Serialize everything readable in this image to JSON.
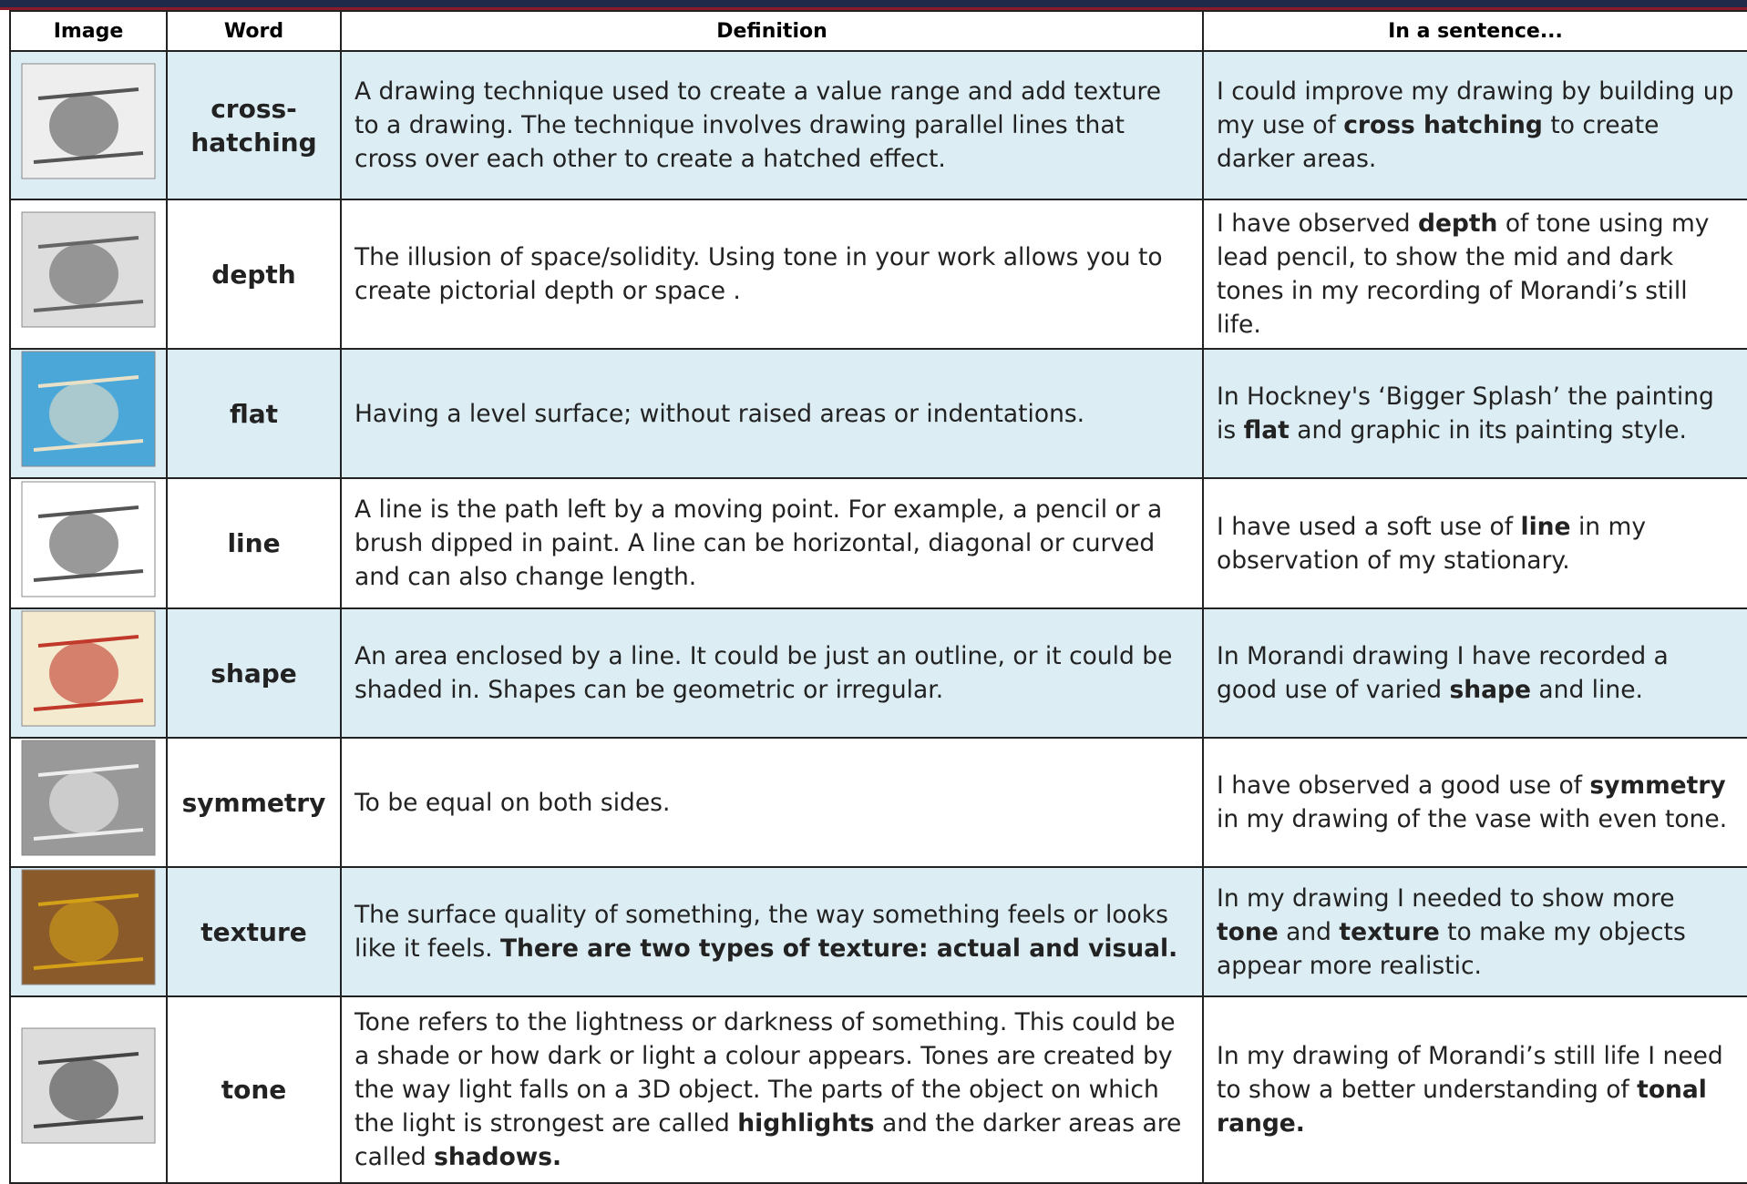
{
  "table": {
    "header": [
      "Image",
      "Word",
      "Definition",
      "In a sentence..."
    ],
    "rows": [
      {
        "word": "cross-hatching",
        "definition": [
          {
            "text": "A drawing technique used to create a value range and add texture to a drawing. The technique involves drawing parallel lines that cross over each other to create a hatched effect.",
            "bold": false
          }
        ],
        "sentence": [
          {
            "text": "I could improve my drawing by building up my use of ",
            "bold": false
          },
          {
            "text": "cross hatching",
            "bold": true
          },
          {
            "text": " to create darker areas.",
            "bold": false
          }
        ]
      },
      {
        "word": "depth",
        "definition": [
          {
            "text": "The illusion of space/solidity.  Using tone in your work allows you to create pictorial depth or space .",
            "bold": false
          }
        ],
        "sentence": [
          {
            "text": "I have observed ",
            "bold": false
          },
          {
            "text": "depth",
            "bold": true
          },
          {
            "text": " of tone using my lead pencil, to show the mid and dark tones in my recording of Morandi’s still life.",
            "bold": false
          }
        ]
      },
      {
        "word": "flat",
        "definition": [
          {
            "text": "Having a level surface; without raised areas or indentations.",
            "bold": false
          }
        ],
        "sentence": [
          {
            "text": "In Hockney's ‘Bigger Splash’ the painting is ",
            "bold": false
          },
          {
            "text": "flat",
            "bold": true
          },
          {
            "text": " and graphic in its painting style.",
            "bold": false
          }
        ]
      },
      {
        "word": "line",
        "definition": [
          {
            "text": "A line is the path left by a moving point. For example, a pencil or a brush dipped in paint. A line can be horizontal, diagonal or curved and can also change length.",
            "bold": false
          }
        ],
        "sentence": [
          {
            "text": "I have used a soft use of ",
            "bold": false
          },
          {
            "text": "line",
            "bold": true
          },
          {
            "text": " in my observation of my stationary.",
            "bold": false
          }
        ]
      },
      {
        "word": "shape",
        "definition": [
          {
            "text": "An area enclosed by a line. It could be just an outline, or it could be shaded in. Shapes can be geometric or irregular.",
            "bold": false
          }
        ],
        "sentence": [
          {
            "text": "In Morandi drawing I have recorded a good use of varied ",
            "bold": false
          },
          {
            "text": "shape",
            "bold": true
          },
          {
            "text": " and line.",
            "bold": false
          }
        ]
      },
      {
        "word": "symmetry",
        "definition": [
          {
            "text": "To be equal on both sides.",
            "bold": false
          }
        ],
        "sentence": [
          {
            "text": "I have observed a good use of ",
            "bold": false
          },
          {
            "text": "symmetry",
            "bold": true
          },
          {
            "text": " in my drawing of the vase with even tone.",
            "bold": false
          }
        ]
      },
      {
        "word": "texture",
        "definition": [
          {
            "text": "The surface quality of something, the way something feels or looks like it feels. ",
            "bold": false
          },
          {
            "text": "There are two types of texture: actual and visual.",
            "bold": true
          }
        ],
        "sentence": [
          {
            "text": "In my drawing I needed to show more ",
            "bold": false
          },
          {
            "text": "tone",
            "bold": true
          },
          {
            "text": " and ",
            "bold": false
          },
          {
            "text": "texture",
            "bold": true
          },
          {
            "text": " to make my objects appear more realistic.",
            "bold": false
          }
        ]
      },
      {
        "word": "tone",
        "definition": [
          {
            "text": "Tone refers to the lightness or darkness of something. This could be a shade or how dark or light a colour appears. Tones are created by the way light falls on a 3D object. The parts of the object on which the light is strongest are called ",
            "bold": false
          },
          {
            "text": "highlights",
            "bold": true
          },
          {
            "text": " and the darker areas are called ",
            "bold": false
          },
          {
            "text": "shadows.",
            "bold": true
          }
        ],
        "sentence": [
          {
            "text": "In my drawing of Morandi’s still life I need to show a better understanding of ",
            "bold": false
          },
          {
            "text": "tonal range.",
            "bold": true
          }
        ]
      }
    ]
  }
}
